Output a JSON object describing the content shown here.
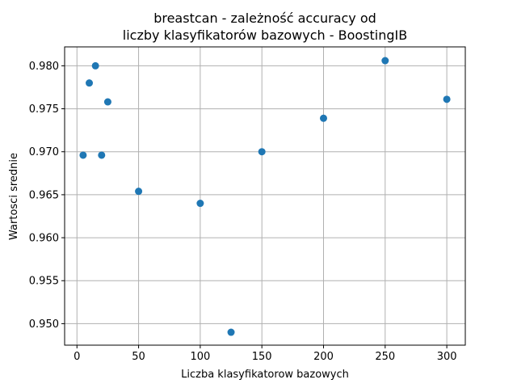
{
  "chart_data": {
    "type": "scatter",
    "title_line1": "breastcan - zależność accuracy od",
    "title_line2": "liczby klasyfikatorów bazowych - BoostingIB",
    "xlabel": "Liczba klasyfikatorow bazowych",
    "ylabel": "Wartosci srednie",
    "xlim": [
      -10,
      315
    ],
    "ylim": [
      0.9475,
      0.9822
    ],
    "xticks": [
      0,
      50,
      100,
      150,
      200,
      250,
      300
    ],
    "xtick_labels": [
      "0",
      "50",
      "100",
      "150",
      "200",
      "250",
      "300"
    ],
    "yticks": [
      0.95,
      0.955,
      0.96,
      0.965,
      0.97,
      0.975,
      0.98
    ],
    "ytick_labels": [
      "0.950",
      "0.955",
      "0.960",
      "0.965",
      "0.970",
      "0.975",
      "0.980"
    ],
    "grid": true,
    "color": "#1f77b4",
    "x": [
      5,
      10,
      15,
      20,
      25,
      50,
      100,
      125,
      150,
      200,
      250,
      300
    ],
    "y": [
      0.9696,
      0.978,
      0.98,
      0.9696,
      0.9758,
      0.9654,
      0.964,
      0.949,
      0.97,
      0.9739,
      0.9806,
      0.9761
    ]
  }
}
